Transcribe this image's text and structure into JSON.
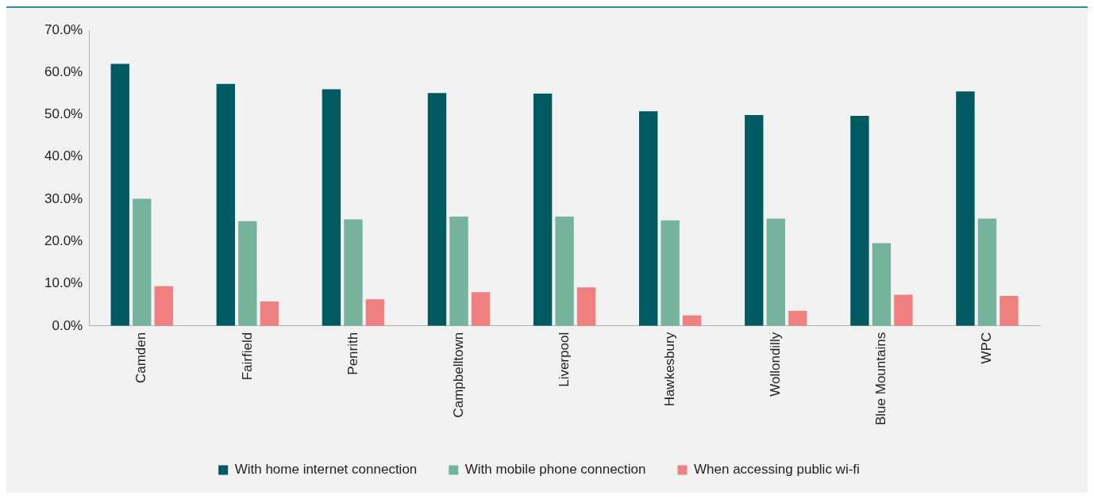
{
  "chart_data": {
    "type": "bar",
    "categories": [
      "Camden",
      "Fairfield",
      "Penrith",
      "Campbelltown",
      "Liverpool",
      "Hawkesbury",
      "Wollondilly",
      "Blue Mountains",
      "WPC"
    ],
    "series": [
      {
        "name": "With home internet connection",
        "color": "#005a62",
        "values": [
          62.0,
          57.3,
          56.0,
          55.1,
          55.0,
          50.8,
          49.9,
          49.7,
          55.5
        ]
      },
      {
        "name": "With mobile phone connection",
        "color": "#76b39d",
        "values": [
          30.1,
          24.8,
          25.2,
          25.9,
          25.9,
          25.0,
          25.4,
          19.6,
          25.4
        ]
      },
      {
        "name": "When accessing public wi-fi",
        "color": "#f08080",
        "values": [
          9.4,
          5.8,
          6.3,
          8.0,
          9.1,
          2.5,
          3.6,
          7.4,
          7.1
        ]
      }
    ],
    "ylim": [
      0,
      70
    ],
    "yticks": [
      {
        "value": 0,
        "label": "0.0%"
      },
      {
        "value": 10,
        "label": "10.0%"
      },
      {
        "value": 20,
        "label": "20.0%"
      },
      {
        "value": 30,
        "label": "30.0%"
      },
      {
        "value": 40,
        "label": "40.0%"
      },
      {
        "value": 50,
        "label": "50.0%"
      },
      {
        "value": 60,
        "label": "60.0%"
      },
      {
        "value": 70,
        "label": "70.0%"
      }
    ],
    "grid": false,
    "legend": "bottom"
  }
}
